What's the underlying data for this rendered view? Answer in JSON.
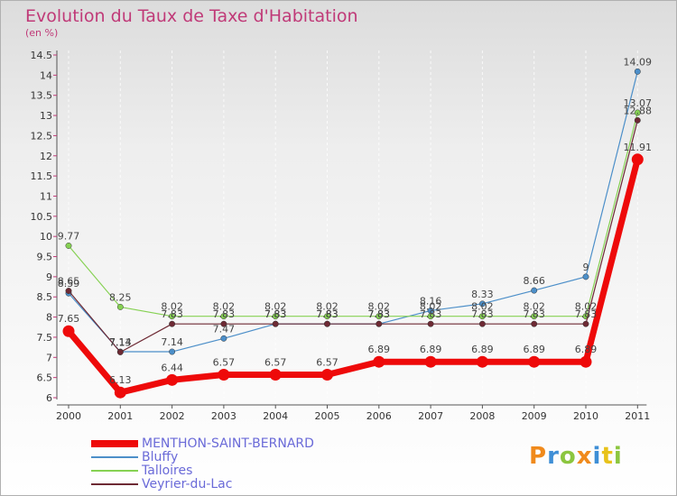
{
  "header": {
    "title": "Evolution du Taux de Taxe d'Habitation",
    "subtitle": "(en %)"
  },
  "chart_data": {
    "type": "line",
    "title": "Evolution du Taux de Taxe d'Habitation",
    "ylabel": "(en %)",
    "xlabel": "",
    "ylim": [
      6,
      14.5
    ],
    "yticks": [
      "6",
      "6.5",
      "7",
      "7.5",
      "8",
      "8.5",
      "9",
      "9.5",
      "10",
      "10.5",
      "11",
      "11.5",
      "12",
      "12.5",
      "13",
      "13.5",
      "14",
      "14.5"
    ],
    "categories": [
      "2000",
      "2001",
      "2002",
      "2003",
      "2004",
      "2005",
      "2006",
      "2007",
      "2008",
      "2009",
      "2010",
      "2011"
    ],
    "series": [
      {
        "name": "Bluffy",
        "color": "#4c8fc9",
        "values": [
          8.59,
          7.14,
          7.14,
          7.47,
          7.83,
          7.83,
          7.83,
          8.16,
          8.33,
          8.66,
          9,
          14.09
        ],
        "labels": [
          "8.59",
          "7.14",
          "7.14",
          "7.47",
          "7.83",
          "7.83",
          "7.83",
          "8.16",
          "8.33",
          "8.66",
          "9",
          "14.09"
        ]
      },
      {
        "name": "Talloires",
        "color": "#86d153",
        "values": [
          9.77,
          8.25,
          8.02,
          8.02,
          8.02,
          8.02,
          8.02,
          8.02,
          8.02,
          8.02,
          8.02,
          13.07
        ],
        "labels": [
          "9.77",
          "8.25",
          "8.02",
          "8.02",
          "8.02",
          "8.02",
          "8.02",
          "8.02",
          "8.02",
          "8.02",
          "8.02",
          "13.07"
        ]
      },
      {
        "name": "Veyrier-du-Lac",
        "color": "#6e2a34",
        "values": [
          8.65,
          7.13,
          7.83,
          7.83,
          7.83,
          7.83,
          7.83,
          7.83,
          7.83,
          7.83,
          7.83,
          12.88
        ],
        "labels": [
          "8.65",
          "7.13",
          "7.83",
          "7.83",
          "7.83",
          "7.83",
          "7.83",
          "7.83",
          "7.83",
          "7.83",
          "7.83",
          "12.88"
        ]
      },
      {
        "name": "MENTHON-SAINT-BERNARD",
        "color": "#ee0a0a",
        "values": [
          7.65,
          6.13,
          6.44,
          6.57,
          6.57,
          6.57,
          6.89,
          6.89,
          6.89,
          6.89,
          6.89,
          11.91
        ],
        "labels": [
          "7.65",
          "6.13",
          "6.44",
          "6.57",
          "6.57",
          "6.57",
          "6.89",
          "6.89",
          "6.89",
          "6.89",
          "6.89",
          "11.91"
        ]
      }
    ],
    "legend": [
      {
        "name": "MENTHON-SAINT-BERNARD",
        "color": "#ee0a0a"
      },
      {
        "name": "Bluffy",
        "color": "#4c8fc9"
      },
      {
        "name": "Talloires",
        "color": "#86d153"
      },
      {
        "name": "Veyrier-du-Lac",
        "color": "#6e2a34"
      }
    ],
    "legend_position": "bottom-left"
  },
  "branding": {
    "logo_letters": [
      "P",
      "r",
      "o",
      "x",
      "i",
      "t",
      "i"
    ],
    "logo_colors": [
      "#f08a1c",
      "#3f8fd6",
      "#8cc63f",
      "#f08a1c",
      "#3f8fd6",
      "#e8c21a",
      "#8cc63f"
    ]
  }
}
